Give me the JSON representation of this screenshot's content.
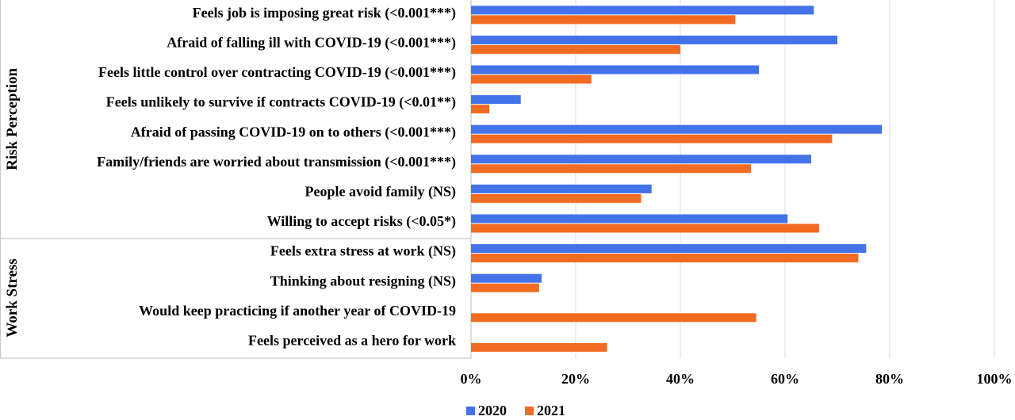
{
  "chart_data": {
    "type": "bar",
    "orientation": "horizontal",
    "categories": [
      "Feels job is imposing great risk (<0.001***)",
      "Afraid of falling ill with COVID-19 (<0.001***)",
      "Feels little control over contracting COVID-19 (<0.001***)",
      "Feels unlikely to survive if contracts COVID-19 (<0.01**)",
      "Afraid of passing COVID-19 on to others (<0.001***)",
      "Family/friends are worried about transmission (<0.001***)",
      "People avoid family (NS)",
      "Willing to accept risks (<0.05*)",
      "Feels extra stress at work (NS)",
      "Thinking about resigning (NS)",
      "Would keep practicing if another year of COVID-19",
      "Feels perceived as a hero for work"
    ],
    "groups": [
      {
        "label": "Risk Perception",
        "start": 0,
        "end": 7
      },
      {
        "label": "Work Stress",
        "start": 8,
        "end": 11
      }
    ],
    "series": [
      {
        "name": "2020",
        "color": "#4472E8",
        "values": [
          65.5,
          70,
          55,
          9.5,
          78.5,
          65,
          34.5,
          60.5,
          75.5,
          13.5,
          null,
          null
        ]
      },
      {
        "name": "2021",
        "color": "#F26B22",
        "values": [
          50.5,
          40,
          23,
          3.5,
          69,
          53.5,
          32.5,
          66.5,
          74,
          13,
          54.5,
          26
        ]
      }
    ],
    "xlim": [
      0,
      100
    ],
    "xticks": [
      "0%",
      "20%",
      "40%",
      "60%",
      "80%",
      "100%"
    ],
    "grid": true,
    "legend_position": "bottom"
  }
}
